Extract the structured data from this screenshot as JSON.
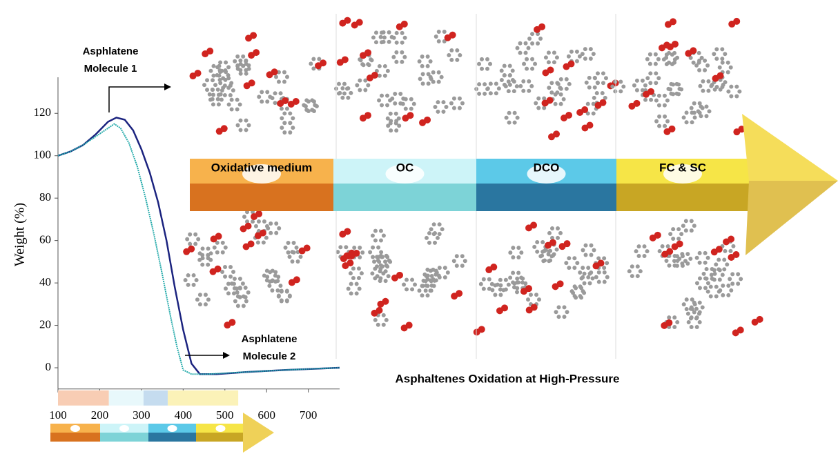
{
  "chart_data": {
    "type": "line",
    "y_label": "Weight (%)",
    "xlim": [
      100,
      775
    ],
    "ylim": [
      -10,
      137
    ],
    "xticks": [
      100,
      200,
      300,
      400,
      500,
      600,
      700
    ],
    "yticks": [
      0,
      20,
      40,
      60,
      80,
      100,
      120
    ],
    "series": [
      {
        "color": "#1b237f",
        "x": [
          100,
          130,
          160,
          190,
          220,
          240,
          260,
          280,
          300,
          320,
          340,
          360,
          380,
          400,
          420,
          440,
          480,
          550,
          650,
          775
        ],
        "values": [
          100,
          102,
          105,
          110,
          116,
          118,
          117,
          112,
          103,
          92,
          78,
          60,
          38,
          18,
          2,
          -3,
          -3,
          -2,
          -1,
          0
        ]
      },
      {
        "color": "#27abab",
        "x": [
          100,
          130,
          160,
          190,
          220,
          235,
          250,
          270,
          290,
          310,
          330,
          350,
          370,
          385,
          400,
          420,
          460,
          550,
          650,
          775
        ],
        "values": [
          100,
          102,
          105,
          109,
          113,
          115,
          113,
          106,
          95,
          80,
          63,
          44,
          24,
          10,
          -1,
          -3,
          -3,
          -2,
          -1,
          0
        ]
      }
    ],
    "annotations": [
      {
        "lines": [
          "Asphlatene",
          "Molecule 1"
        ]
      },
      {
        "lines": [
          "Asphlatene",
          "Molecule 2"
        ]
      }
    ],
    "caption": "Asphaltenes Oxidation at High-Pressure",
    "stages": [
      {
        "label": "Oxidative medium",
        "top": "#f7b24c",
        "front": "#d8721f",
        "band": "#f8cdb4",
        "range": [
          100,
          222
        ]
      },
      {
        "label": "OC",
        "top": "#cdf4f8",
        "front": "#7dd3d7",
        "band": "#e8f8fb",
        "range": [
          222,
          305
        ]
      },
      {
        "label": "DCO",
        "top": "#5cc9e8",
        "front": "#2a76a0",
        "band": "#c5dcef",
        "range": [
          305,
          363
        ]
      },
      {
        "label": "FC & SC",
        "top": "#f6e547",
        "front": "#c8a624",
        "band": "#fbf2b8",
        "range": [
          363,
          532
        ]
      }
    ]
  }
}
